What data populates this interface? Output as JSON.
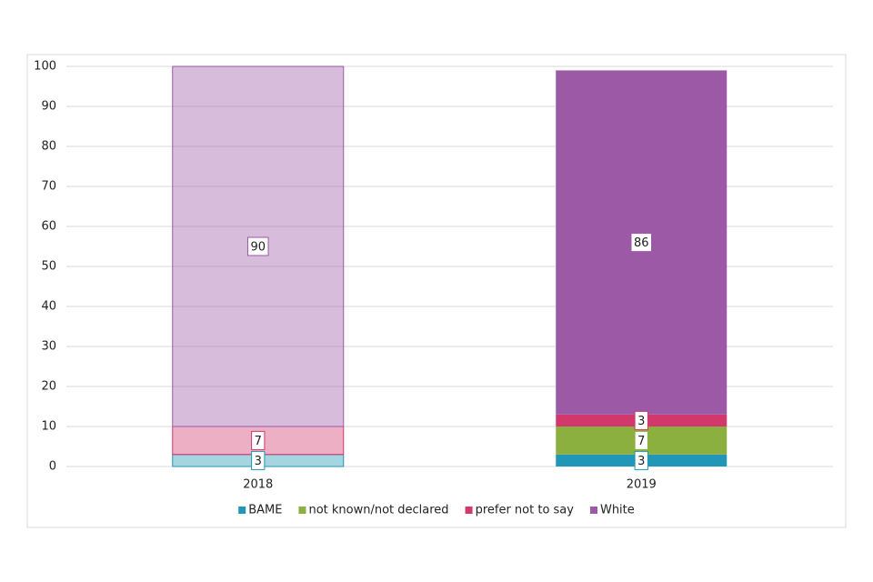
{
  "chart_data": {
    "type": "stacked_bar",
    "categories": [
      "2018",
      "2019"
    ],
    "series": [
      {
        "name": "BAME",
        "color": "#2196b6",
        "values": [
          3,
          3
        ]
      },
      {
        "name": "not known/not declared",
        "color": "#8bb03f",
        "values": [
          null,
          7
        ]
      },
      {
        "name": "prefer not to say",
        "color": "#d2386c",
        "values": [
          7,
          3
        ]
      },
      {
        "name": "White",
        "color": "#9b59a6",
        "values": [
          90,
          86
        ]
      }
    ],
    "ylim": [
      0,
      100
    ],
    "yticks": [
      0,
      10,
      20,
      30,
      40,
      50,
      60,
      70,
      80,
      90,
      100
    ],
    "grid": true,
    "legend": "bottom"
  }
}
